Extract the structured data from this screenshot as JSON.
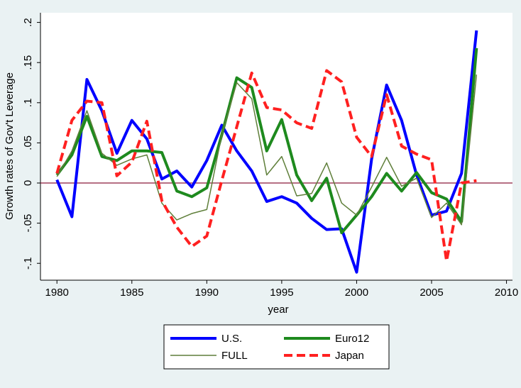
{
  "chart_data": {
    "type": "line",
    "x": [
      1980,
      1981,
      1982,
      1983,
      1984,
      1985,
      1986,
      1987,
      1988,
      1989,
      1990,
      1991,
      1992,
      1993,
      1994,
      1995,
      1996,
      1997,
      1998,
      1999,
      2000,
      2001,
      2002,
      2003,
      2004,
      2005,
      2006,
      2007,
      2008
    ],
    "series": [
      {
        "name": "U.S.",
        "color": "#0000ff",
        "width": 4,
        "dash": false,
        "values": [
          0.004,
          -0.042,
          0.129,
          0.09,
          0.037,
          0.078,
          0.055,
          0.005,
          0.015,
          -0.005,
          0.028,
          0.072,
          0.04,
          0.015,
          -0.023,
          -0.017,
          -0.025,
          -0.044,
          -0.058,
          -0.057,
          -0.111,
          0.03,
          0.122,
          0.078,
          0.01,
          -0.04,
          -0.035,
          0.012,
          0.19
        ]
      },
      {
        "name": "Euro12",
        "color": "#1e8a1e",
        "width": 4,
        "dash": false,
        "values": [
          0.01,
          0.035,
          0.083,
          0.033,
          0.028,
          0.04,
          0.04,
          0.038,
          -0.01,
          -0.017,
          -0.006,
          0.06,
          0.131,
          0.119,
          0.04,
          0.079,
          0.01,
          -0.022,
          0.006,
          -0.062,
          -0.04,
          -0.017,
          0.012,
          -0.01,
          0.013,
          -0.012,
          -0.02,
          -0.048,
          0.168
        ]
      },
      {
        "name": "FULL",
        "color": "#5f7f3a",
        "width": 1.5,
        "dash": false,
        "values": [
          0.008,
          0.04,
          0.09,
          0.037,
          0.022,
          0.03,
          0.035,
          -0.025,
          -0.046,
          -0.038,
          -0.033,
          0.06,
          0.125,
          0.105,
          0.01,
          0.033,
          -0.016,
          -0.013,
          0.025,
          -0.025,
          -0.04,
          -0.005,
          0.032,
          -0.004,
          0.006,
          -0.043,
          -0.025,
          -0.052,
          0.135
        ]
      },
      {
        "name": "Japan",
        "color": "#ff2020",
        "width": 4,
        "dash": true,
        "values": [
          0.012,
          0.078,
          0.102,
          0.1,
          0.009,
          0.026,
          0.077,
          -0.022,
          -0.055,
          -0.079,
          -0.066,
          0.003,
          0.07,
          0.137,
          0.094,
          0.091,
          0.075,
          0.068,
          0.14,
          0.126,
          0.057,
          0.033,
          0.11,
          0.046,
          0.036,
          0.029,
          -0.097,
          0.0,
          0.003
        ]
      }
    ],
    "y_label": "Growth rates of Gov't Leverage",
    "x_label": "year",
    "xlim": [
      1978.9,
      2010.4
    ],
    "xticks": [
      1980,
      1985,
      1990,
      1995,
      2000,
      2005,
      2010
    ],
    "ylim": [
      -0.121,
      0.212
    ],
    "yticks": [
      {
        "value": -0.1,
        "label": "-.1"
      },
      {
        "value": -0.05,
        "label": "-.05"
      },
      0,
      {
        "value": 0.05,
        "label": ".05"
      },
      {
        "value": 0.1,
        "label": ".1"
      },
      {
        "value": 0.15,
        "label": ".15"
      },
      {
        "value": 0.2,
        "label": ".2"
      }
    ],
    "reference_line": 0,
    "reference_color": "#8b1a3a",
    "grid": false,
    "legend": "bottom"
  }
}
